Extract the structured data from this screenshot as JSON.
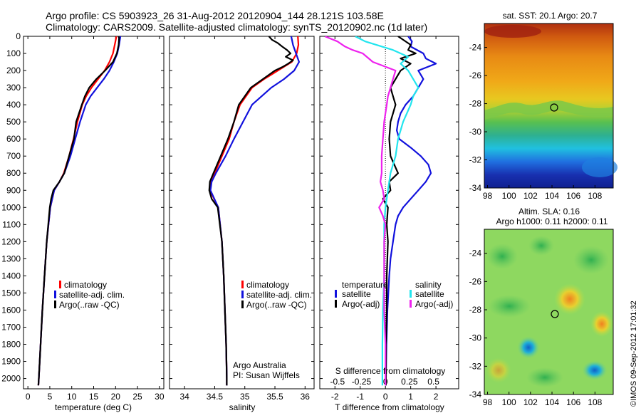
{
  "title_line1": "Argo profile: CS 5903923_26 31-Aug-2012 20120904_144 28.121S 103.58E",
  "title_line2": "Climatology: CARS2009. Satellite-adjusted climatology: synTS_20120902.nc (1d later)",
  "map_sst_title": "sat. SST: 20.1  Argo: 20.7",
  "map_sla_title1": "Altim. SLA: 0.16",
  "map_sla_title2": "Argo h1000: 0.11 h2000: 0.11",
  "stamp": "©IMOS 09-Sep-2012 17:01:32",
  "annotation_line1": "Argo Australia",
  "annotation_line2": "PI: Susan Wijffels",
  "legend_profiles": [
    "climatology",
    "satellite-adj. clim.",
    "Argo(..raw -QC)"
  ],
  "legend_diff": {
    "temp_header": "temperature",
    "sal_header": "salinity",
    "temp_items": [
      "satellite",
      "Argo(-adj)"
    ],
    "sal_items": [
      "satellite",
      "Argo(-adj)"
    ]
  },
  "colors": {
    "climatology": "#ff0000",
    "satellite": "#1111dd",
    "argo": "#000000",
    "sal_satellite": "#22e5ee",
    "sal_argo": "#ee22ee"
  },
  "chart_data": [
    {
      "type": "line",
      "xlabel": "temperature (deg C)",
      "ylabel": "",
      "xlim": [
        -1,
        31
      ],
      "ylim": [
        2060,
        0
      ],
      "xticks": [
        0,
        5,
        10,
        15,
        20,
        25,
        30
      ],
      "yticks": [
        0,
        100,
        200,
        300,
        400,
        500,
        600,
        700,
        800,
        900,
        1000,
        1100,
        1200,
        1300,
        1400,
        1500,
        1600,
        1700,
        1800,
        1900,
        2000
      ],
      "series": [
        {
          "name": "climatology",
          "color": "#ff0000",
          "depth": [
            0,
            50,
            100,
            150,
            200,
            250,
            300,
            350,
            400,
            500,
            600,
            700,
            800,
            850,
            900,
            1000,
            1200,
            1400,
            1600,
            1800,
            2000,
            2040
          ],
          "values": [
            20.2,
            19.8,
            19.4,
            18.6,
            17.5,
            16,
            14.5,
            13.3,
            12.4,
            11.3,
            10.4,
            9.4,
            8.2,
            7.2,
            6,
            5.1,
            4.3,
            3.8,
            3.3,
            2.9,
            2.5,
            2.4
          ]
        },
        {
          "name": "satellite-adj. clim.",
          "color": "#1111dd",
          "depth": [
            0,
            50,
            100,
            150,
            200,
            250,
            300,
            350,
            400,
            500,
            600,
            700,
            800,
            850,
            900,
            1000,
            1200,
            1400,
            1600,
            1800,
            2000,
            2040
          ],
          "values": [
            21.1,
            20.8,
            20.4,
            19.6,
            18.6,
            17.3,
            15.8,
            14.3,
            13.2,
            11.9,
            10.8,
            9.7,
            8.3,
            7.2,
            6,
            5.1,
            4.3,
            3.8,
            3.3,
            2.9,
            2.5,
            2.4
          ]
        },
        {
          "name": "Argo(..raw -QC)",
          "color": "#000000",
          "depth": [
            0,
            10,
            50,
            100,
            150,
            200,
            250,
            300,
            350,
            400,
            500,
            600,
            700,
            800,
            850,
            900,
            950,
            1000,
            1200,
            1400,
            1600,
            1800,
            2000,
            2040
          ],
          "values": [
            20.7,
            20.8,
            20.7,
            20.3,
            19.4,
            17.6,
            15.6,
            14,
            13,
            12.3,
            11,
            10.5,
            9.4,
            8.3,
            7.2,
            5.8,
            5.3,
            5.0,
            4.3,
            3.8,
            3.3,
            2.9,
            2.5,
            2.4
          ]
        }
      ]
    },
    {
      "type": "line",
      "xlabel": "salinity",
      "ylabel": "",
      "xlim": [
        33.75,
        36.15
      ],
      "ylim": [
        2060,
        0
      ],
      "xticks": [
        34,
        34.5,
        35,
        35.5,
        36
      ],
      "series": [
        {
          "name": "climatology",
          "color": "#ff0000",
          "depth": [
            0,
            50,
            100,
            150,
            200,
            250,
            300,
            400,
            500,
            600,
            700,
            800,
            850,
            900,
            1000,
            1200,
            1400,
            1600,
            1800,
            2000,
            2040
          ],
          "values": [
            35.88,
            35.89,
            35.86,
            35.78,
            35.55,
            35.32,
            35.12,
            34.92,
            34.82,
            34.74,
            34.62,
            34.5,
            34.44,
            34.42,
            34.56,
            34.62,
            34.65,
            34.67,
            34.69,
            34.7,
            34.7
          ]
        },
        {
          "name": "satellite-adj. clim.",
          "color": "#1111dd",
          "depth": [
            0,
            50,
            100,
            150,
            200,
            250,
            300,
            400,
            500,
            600,
            700,
            800,
            850,
            900,
            1000,
            1200,
            1400,
            1600,
            1800,
            2000,
            2040
          ],
          "values": [
            35.77,
            35.8,
            35.85,
            35.9,
            35.82,
            35.65,
            35.44,
            35.12,
            34.97,
            34.82,
            34.68,
            34.52,
            34.45,
            34.43,
            34.56,
            34.62,
            34.65,
            34.67,
            34.69,
            34.7,
            34.7
          ]
        },
        {
          "name": "Argo(..raw -QC)",
          "color": "#000000",
          "depth": [
            0,
            20,
            40,
            60,
            80,
            100,
            120,
            140,
            160,
            180,
            200,
            250,
            300,
            400,
            500,
            600,
            700,
            800,
            850,
            900,
            950,
            1000,
            1200,
            1400,
            1600,
            1800,
            2000,
            2040
          ],
          "values": [
            35.4,
            35.45,
            35.55,
            35.62,
            35.7,
            35.76,
            35.68,
            35.8,
            35.72,
            35.62,
            35.5,
            35.3,
            35.1,
            34.9,
            34.82,
            34.72,
            34.6,
            34.48,
            34.42,
            34.41,
            34.45,
            34.55,
            34.62,
            34.65,
            34.67,
            34.69,
            34.7,
            34.7
          ]
        }
      ]
    },
    {
      "type": "line",
      "xlabel": "T difference from climatology",
      "ylabel": "",
      "xlim": [
        -2.6,
        2.9
      ],
      "ylim": [
        2060,
        0
      ],
      "xticks": [
        -2,
        -1,
        0,
        1,
        2
      ],
      "top_axis_label": "S difference from climatology",
      "top_axis_ticks": [
        "-0.5",
        "-0.25",
        "0",
        "0.25",
        "0.5"
      ],
      "top_axis_tick_values_T_units": [
        -1.9,
        -0.95,
        0,
        0.95,
        1.9
      ],
      "series": [
        {
          "name": "temperature satellite",
          "color": "#1111dd",
          "depth": [
            0,
            30,
            60,
            100,
            130,
            160,
            200,
            250,
            300,
            350,
            400,
            450,
            500,
            550,
            600,
            650,
            700,
            750,
            800,
            850,
            900,
            950,
            1000,
            1050,
            1100,
            1150,
            1200,
            1300,
            1400,
            1600,
            1800,
            2000,
            2040
          ],
          "values": [
            0.9,
            1.05,
            1.0,
            1.5,
            1.6,
            2.0,
            1.3,
            1.5,
            1.3,
            1.1,
            0.8,
            0.6,
            0.5,
            0.45,
            0.55,
            1.0,
            1.4,
            1.7,
            1.8,
            1.6,
            1.3,
            1.0,
            0.7,
            0.5,
            0.4,
            0.35,
            0.3,
            0.2,
            0.15,
            0.08,
            0.04,
            0.02,
            0.02
          ]
        },
        {
          "name": "temperature Argo(-adj)",
          "color": "#000000",
          "depth": [
            0,
            50,
            80,
            100,
            130,
            160,
            200,
            250,
            300,
            350,
            400,
            500,
            600,
            700,
            800,
            850,
            900,
            950,
            1000,
            1100,
            1200,
            1400,
            1600,
            1800,
            2000,
            2040
          ],
          "values": [
            0.5,
            1.0,
            0.9,
            1.2,
            0.6,
            1.0,
            0.6,
            0.4,
            0.2,
            0.3,
            0.4,
            0.2,
            0.15,
            0.2,
            0.5,
            0.15,
            0.2,
            -0.1,
            0.1,
            0.05,
            0.1,
            0.05,
            0.05,
            0.02,
            0.02,
            0.02
          ]
        },
        {
          "name": "salinity satellite",
          "color": "#22e5ee",
          "depth": [
            0,
            30,
            80,
            120,
            160,
            200,
            250,
            300,
            350,
            400,
            500,
            600,
            700,
            750,
            800,
            900,
            1000,
            1100,
            1200,
            1400,
            1600,
            1800,
            2000,
            2040
          ],
          "values": [
            -1.2,
            -0.8,
            0.3,
            0.9,
            0.6,
            0.9,
            1.1,
            1.3,
            1.1,
            1.0,
            0.7,
            0.5,
            0.4,
            0.3,
            0.2,
            0.1,
            0.0,
            -0.05,
            -0.05,
            -0.05,
            -0.1,
            -0.12,
            -0.12,
            -0.12
          ]
        },
        {
          "name": "salinity Argo(-adj)",
          "color": "#ee22ee",
          "depth": [
            0,
            30,
            60,
            80,
            100,
            150,
            200,
            250,
            300,
            350,
            400,
            450,
            500,
            600,
            700,
            800,
            850,
            900,
            950,
            1000,
            1050,
            1100,
            1200,
            1400,
            1600,
            1800,
            2000,
            2040
          ],
          "values": [
            -2.4,
            -1.9,
            -1.6,
            -1.3,
            -0.9,
            -0.5,
            0.4,
            0.3,
            0.2,
            0.1,
            0.05,
            0.0,
            -0.05,
            -0.1,
            -0.15,
            -0.15,
            -0.2,
            -0.1,
            -0.05,
            -0.25,
            -0.1,
            0.0,
            -0.05,
            -0.05,
            -0.05,
            0.0,
            0.0,
            0.0
          ]
        }
      ]
    },
    {
      "type": "heatmap",
      "title": "sat. SST: 20.1  Argo: 20.7",
      "xlim": [
        97.7,
        109.7
      ],
      "ylim": [
        -34,
        -22.3
      ],
      "xticks": [
        98,
        100,
        102,
        104,
        106,
        108
      ],
      "yticks": [
        -24,
        -26,
        -28,
        -30,
        -32,
        -34
      ],
      "marker": {
        "x": 103.58,
        "y": -28.121
      }
    },
    {
      "type": "heatmap",
      "title": "Altim. SLA: 0.16 / Argo h1000: 0.11 h2000: 0.11",
      "xlim": [
        97.7,
        109.7
      ],
      "ylim": [
        -34,
        -22.3
      ],
      "xticks": [
        98,
        100,
        102,
        104,
        106,
        108
      ],
      "yticks": [
        -24,
        -26,
        -28,
        -30,
        -32,
        -34
      ],
      "marker": {
        "x": 103.58,
        "y": -28.121
      }
    }
  ]
}
